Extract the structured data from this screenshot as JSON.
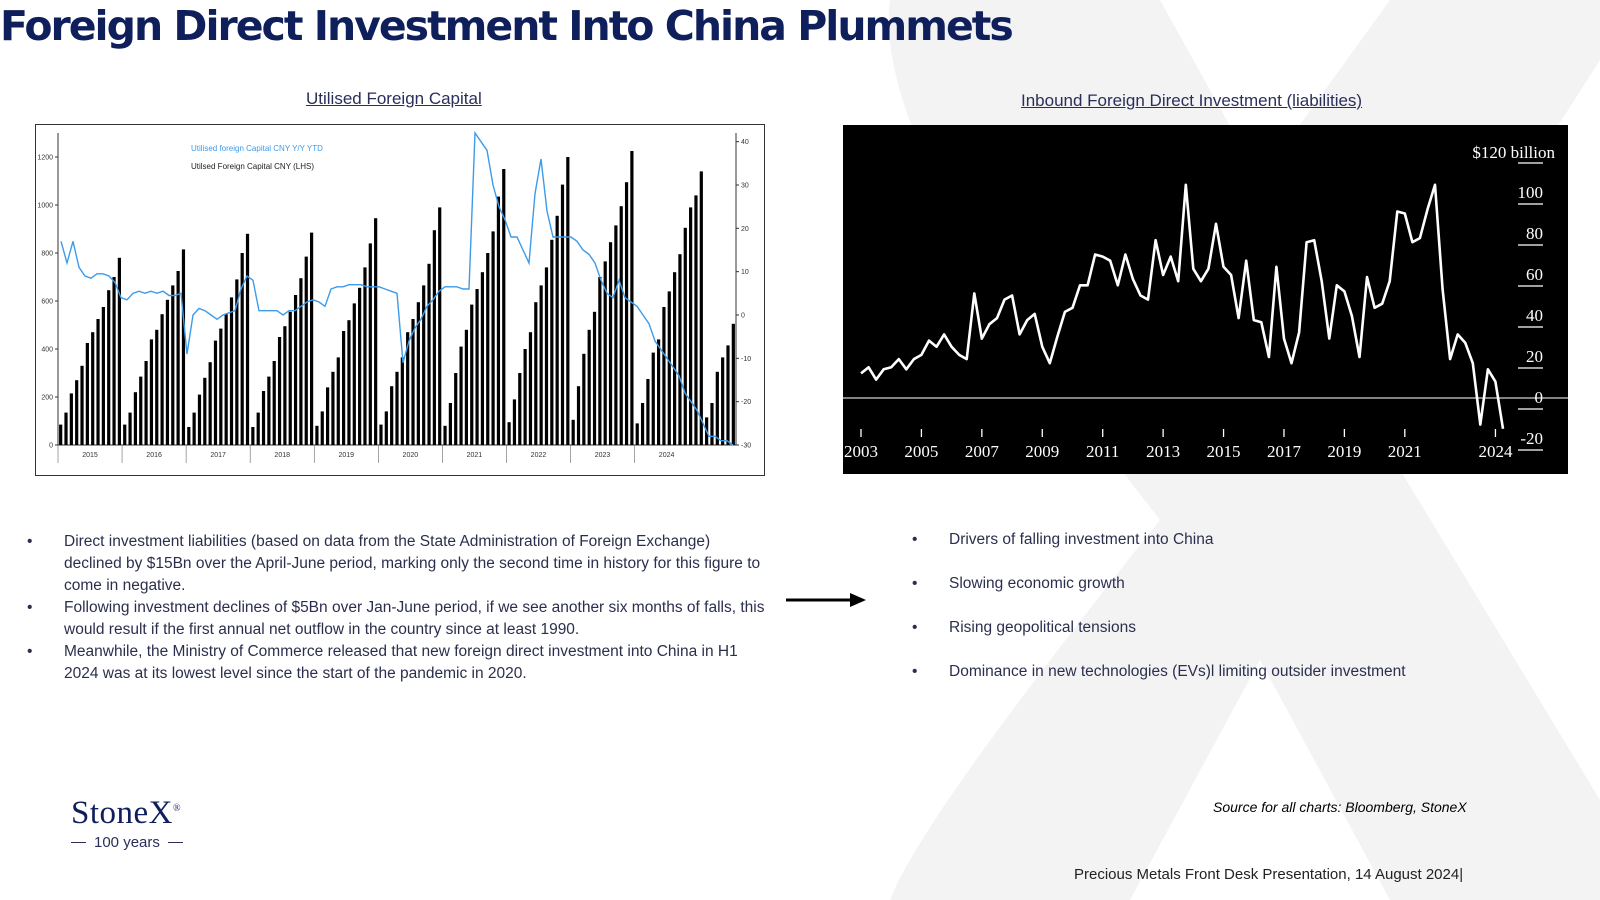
{
  "slide": {
    "title": "Foreign Direct Investment Into China Plummets",
    "left_chart_title": "Utilised Foreign Capital",
    "right_chart_title": "Inbound Foreign Direct Investment (liabilities)",
    "source": "Source for all charts: Bloomberg, StoneX",
    "footer": "Precious Metals Front Desk Presentation, 14 August 2024|",
    "accent_color": "#0f1f5c",
    "watermark_color": "#f1f1f1"
  },
  "logo": {
    "name": "StoneX",
    "mark": "®",
    "sub": "100 years"
  },
  "bullets_left": [
    "Direct investment liabilities (based on data from the State Administration of Foreign Exchange) declined by $15Bn over the April-June period, marking only the second time in history for this figure to come in negative.",
    "Following investment declines of $5Bn over Jan-June period, if we see another six months of falls, this would result if the first annual net outflow in the country since at least 1990.",
    "Meanwhile, the Ministry of Commerce released that new foreign direct investment into China in H1 2024 was at its lowest level since the start of the pandemic in 2020."
  ],
  "bullets_right": [
    "Drivers of falling investment into China",
    "Slowing economic growth",
    "Rising geopolitical tensions",
    "Dominance in new technologies (EVs)l limiting outsider investment"
  ],
  "bullet_glyph": "•",
  "arrow_icon": "right-arrow-icon",
  "chart_data": [
    {
      "type": "bar+line",
      "title": "Utilised Foreign Capital",
      "legend": [
        "Utilised foreign Capital CNY Y/Y YTD",
        "Utilsed Foreign Capital CNY (LHS)"
      ],
      "legend_placement": "top-left",
      "series_colors": {
        "line": "#3d9be9",
        "bars": "#000000"
      },
      "x_labels": [
        "2015",
        "2016",
        "2017",
        "2018",
        "2019",
        "2020",
        "2021",
        "2022",
        "2023",
        "2024"
      ],
      "ylim_left": [
        0,
        1300
      ],
      "yticks_left": [
        0,
        200,
        400,
        600,
        800,
        1000,
        1200
      ],
      "ylim_right": [
        -30,
        42
      ],
      "yticks_right": [
        40,
        30,
        20,
        10,
        0,
        -10,
        -20,
        -30
      ],
      "bars_lhs": [
        85,
        135,
        215,
        270,
        330,
        425,
        470,
        525,
        575,
        645,
        700,
        780,
        85,
        135,
        220,
        285,
        350,
        440,
        480,
        545,
        605,
        665,
        725,
        815,
        75,
        135,
        210,
        280,
        345,
        435,
        485,
        545,
        615,
        690,
        800,
        880,
        75,
        135,
        225,
        285,
        350,
        450,
        495,
        555,
        625,
        695,
        785,
        885,
        80,
        140,
        240,
        305,
        365,
        475,
        520,
        590,
        655,
        740,
        840,
        945,
        85,
        140,
        245,
        305,
        365,
        470,
        525,
        595,
        665,
        755,
        895,
        990,
        80,
        175,
        300,
        410,
        480,
        585,
        650,
        720,
        800,
        890,
        1035,
        1150,
        95,
        190,
        300,
        400,
        470,
        595,
        665,
        740,
        855,
        955,
        1085,
        1200,
        105,
        245,
        380,
        480,
        555,
        700,
        765,
        845,
        915,
        995,
        1095,
        1225,
        90,
        175,
        275,
        385,
        440,
        575,
        640,
        720,
        795,
        905,
        990,
        1040,
        1140,
        115,
        175,
        305,
        365,
        415,
        505
      ],
      "line_yy_ytd": [
        17,
        12,
        17,
        11,
        9,
        8.5,
        9.5,
        9.5,
        9,
        7.5,
        4,
        3.5,
        5,
        5.5,
        5,
        5.5,
        5,
        5.5,
        4.5,
        4.5,
        5,
        -9,
        0,
        1.5,
        1,
        0,
        -1,
        0,
        0.5,
        1,
        6,
        9,
        8,
        1,
        1,
        1,
        1,
        0,
        1,
        1,
        2,
        3,
        3.5,
        3,
        2,
        6,
        6.5,
        6.5,
        7,
        7,
        7,
        6.5,
        6.5,
        6.5,
        6,
        5.5,
        5,
        -11,
        -6,
        -3,
        -1,
        2,
        3.5,
        5.5,
        6.5,
        6.5,
        6.5,
        6,
        6,
        42,
        40,
        38,
        30,
        25,
        22,
        18,
        18,
        15,
        12,
        28,
        36,
        24,
        18,
        18,
        18,
        18,
        17,
        15,
        14,
        12,
        8,
        5,
        4,
        8,
        4,
        3,
        2,
        0,
        -2,
        -6,
        -8,
        -10,
        -12,
        -14,
        -18,
        -20,
        -22,
        -25,
        -28,
        -28,
        -29,
        -29,
        -30
      ]
    },
    {
      "type": "line",
      "title": "Inbound Foreign Direct Investment (liabilities)",
      "unit_label": "$120 billion",
      "series_color": "#ffffff",
      "background": "#000000",
      "x_labels": [
        "2003",
        "2005",
        "2007",
        "2009",
        "2011",
        "2013",
        "2015",
        "2017",
        "2019",
        "2021",
        "2024"
      ],
      "ylim": [
        -25,
        125
      ],
      "yticks": [
        120,
        100,
        80,
        60,
        40,
        20,
        0,
        -20
      ],
      "reference_line_y": 0,
      "x_start": 2003.0,
      "x_step": 0.25,
      "values": [
        12,
        15,
        9,
        14,
        15,
        19,
        14,
        19,
        21,
        28,
        25,
        31,
        25,
        21,
        19,
        51,
        29,
        36,
        39,
        48,
        50,
        31,
        38,
        41,
        25,
        17,
        30,
        42,
        44,
        55,
        55,
        70,
        69,
        67,
        55,
        70,
        58,
        50,
        48,
        77,
        60,
        69,
        57,
        104,
        63,
        57,
        63,
        85,
        64,
        60,
        39,
        67,
        38,
        37,
        20,
        64,
        29,
        17,
        32,
        76,
        77,
        57,
        29,
        55,
        52,
        40,
        20,
        59,
        44,
        46,
        57,
        91,
        90,
        76,
        78,
        92,
        104,
        53,
        19,
        31,
        27,
        17,
        -13,
        14,
        8,
        -15
      ]
    }
  ]
}
